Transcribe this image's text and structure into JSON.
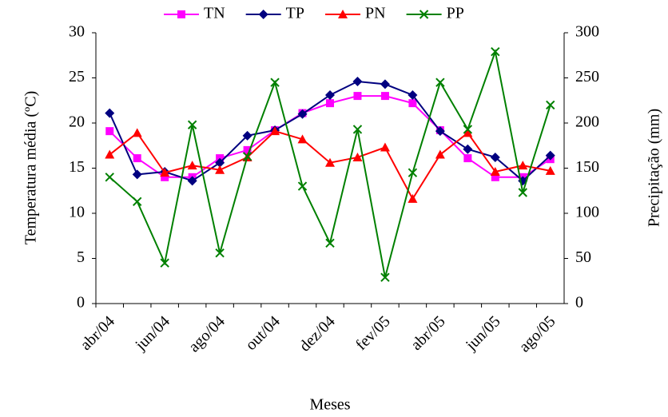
{
  "chart_data": {
    "type": "line",
    "x_label": "Meses",
    "y_label": "Temperatura média (ºC)",
    "y2_label": "Precipitação (mm)",
    "categories": [
      "abr/04",
      null,
      "jun/04",
      null,
      "ago/04",
      null,
      "out/04",
      null,
      "dez/04",
      null,
      "fev/05",
      null,
      "abr/05",
      null,
      "jun/05",
      null,
      "ago/05"
    ],
    "series": [
      {
        "name": "TN",
        "color": "#ff00ff",
        "marker": "square",
        "values": [
          19.1,
          16.1,
          14.0,
          14.0,
          16.1,
          17.0,
          19.2,
          21.1,
          22.2,
          23.0,
          23.0,
          22.2,
          19.2,
          16.1,
          14.0,
          14.0,
          16.0
        ]
      },
      {
        "name": "TP",
        "color": "#000080",
        "marker": "diamond",
        "values": [
          21.1,
          14.3,
          14.6,
          13.6,
          15.6,
          18.6,
          19.2,
          21.0,
          23.1,
          24.6,
          24.3,
          23.1,
          19.1,
          17.1,
          16.2,
          13.6,
          16.4
        ]
      },
      {
        "name": "PN",
        "color": "#ff0000",
        "marker": "triangle",
        "values": [
          16.5,
          18.9,
          14.5,
          15.3,
          14.8,
          16.2,
          19.1,
          18.2,
          15.6,
          16.2,
          17.3,
          11.6,
          16.5,
          18.9,
          14.6,
          15.3,
          14.7
        ]
      },
      {
        "name": "PP",
        "color": "#008000",
        "marker": "x",
        "axis": "y2",
        "values": [
          140,
          113,
          45,
          198,
          56,
          163,
          245,
          130,
          67,
          193,
          29,
          145,
          245,
          193,
          279,
          123,
          220
        ]
      }
    ],
    "ylim": [
      0,
      30
    ],
    "yticks": [
      0,
      5,
      10,
      15,
      20,
      25,
      30
    ],
    "y2lim": [
      0,
      300
    ],
    "y2ticks": [
      0,
      50,
      100,
      150,
      200,
      250,
      300
    ],
    "legend": "top"
  }
}
